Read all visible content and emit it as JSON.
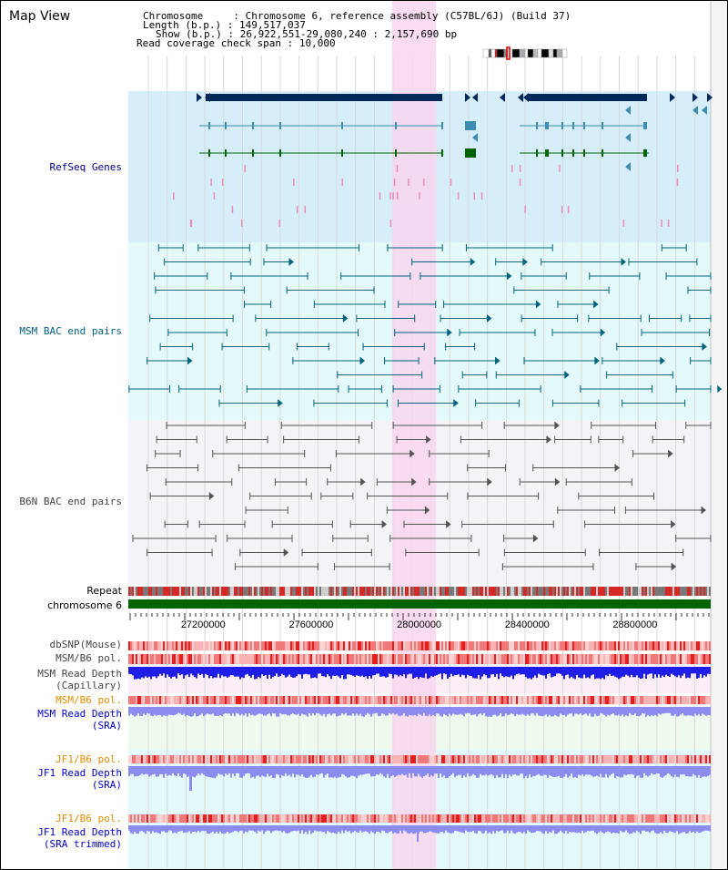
{
  "app": {
    "title": "Map View"
  },
  "header": {
    "chromosome_label": "Chromosome",
    "chromosome_value": "Chromosome 6, reference assembly (C57BL/6J) (Build 37)",
    "length_label": "Length (b.p.)",
    "length_value": "149,517,037",
    "show_label": "Show (b.p.)",
    "show_value": "26,922,551-29,080,240 : 2,157,690 bp",
    "coverage_label": "Read coverage check span",
    "coverage_value": "10,000",
    "sep": ":"
  },
  "tracks": {
    "refseq": "RefSeq Genes",
    "msm_bac": "MSM BAC end pairs",
    "b6n_bac": "B6N BAC end pairs",
    "repeat": "Repeat",
    "chromosome": "chromosome 6",
    "dbsnp": "dbSNP(Mouse)",
    "msm_pol": "MSM/B6 pol.",
    "msm_depth_cap_1": "MSM Read Depth",
    "msm_depth_cap_2": "(Capillary)",
    "msm_pol_sra": "MSM/B6 pol.",
    "msm_depth_sra_1": "MSM Read Depth",
    "msm_depth_sra_2": "(SRA)",
    "jf1_pol_1": "JF1/B6 pol.",
    "jf1_depth_1": "JF1 Read Depth",
    "jf1_depth_1b": "(SRA)",
    "jf1_pol_2": "JF1/B6 pol.",
    "jf1_depth_2": "JF1 Read Depth",
    "jf1_depth_2b": "(SRA trimmed)"
  },
  "axis": {
    "start_bp": 26922551,
    "end_bp": 29080240,
    "ticks": [
      "27200000",
      "27600000",
      "28000000",
      "28400000",
      "28800000"
    ],
    "highlight_start_bp": 27900000,
    "highlight_end_bp": 28063000
  },
  "colors": {
    "refseq_bg": "#d6eefa",
    "msm_bg": "#e4fafa",
    "b6n_bg": "#f4f4f8",
    "highlight": "#f8d6ee",
    "gene_dark": "#00285a",
    "gene_mid": "#3c8cb4",
    "gene_green": "#006400",
    "msm_pair": "#00647d",
    "b6n_pair": "#555555",
    "chromosome_bar": "#006400",
    "depth_blue": "#1e1ee6",
    "depth_light": "#8c8cf0",
    "pol_red": "#f03c3c"
  }
}
